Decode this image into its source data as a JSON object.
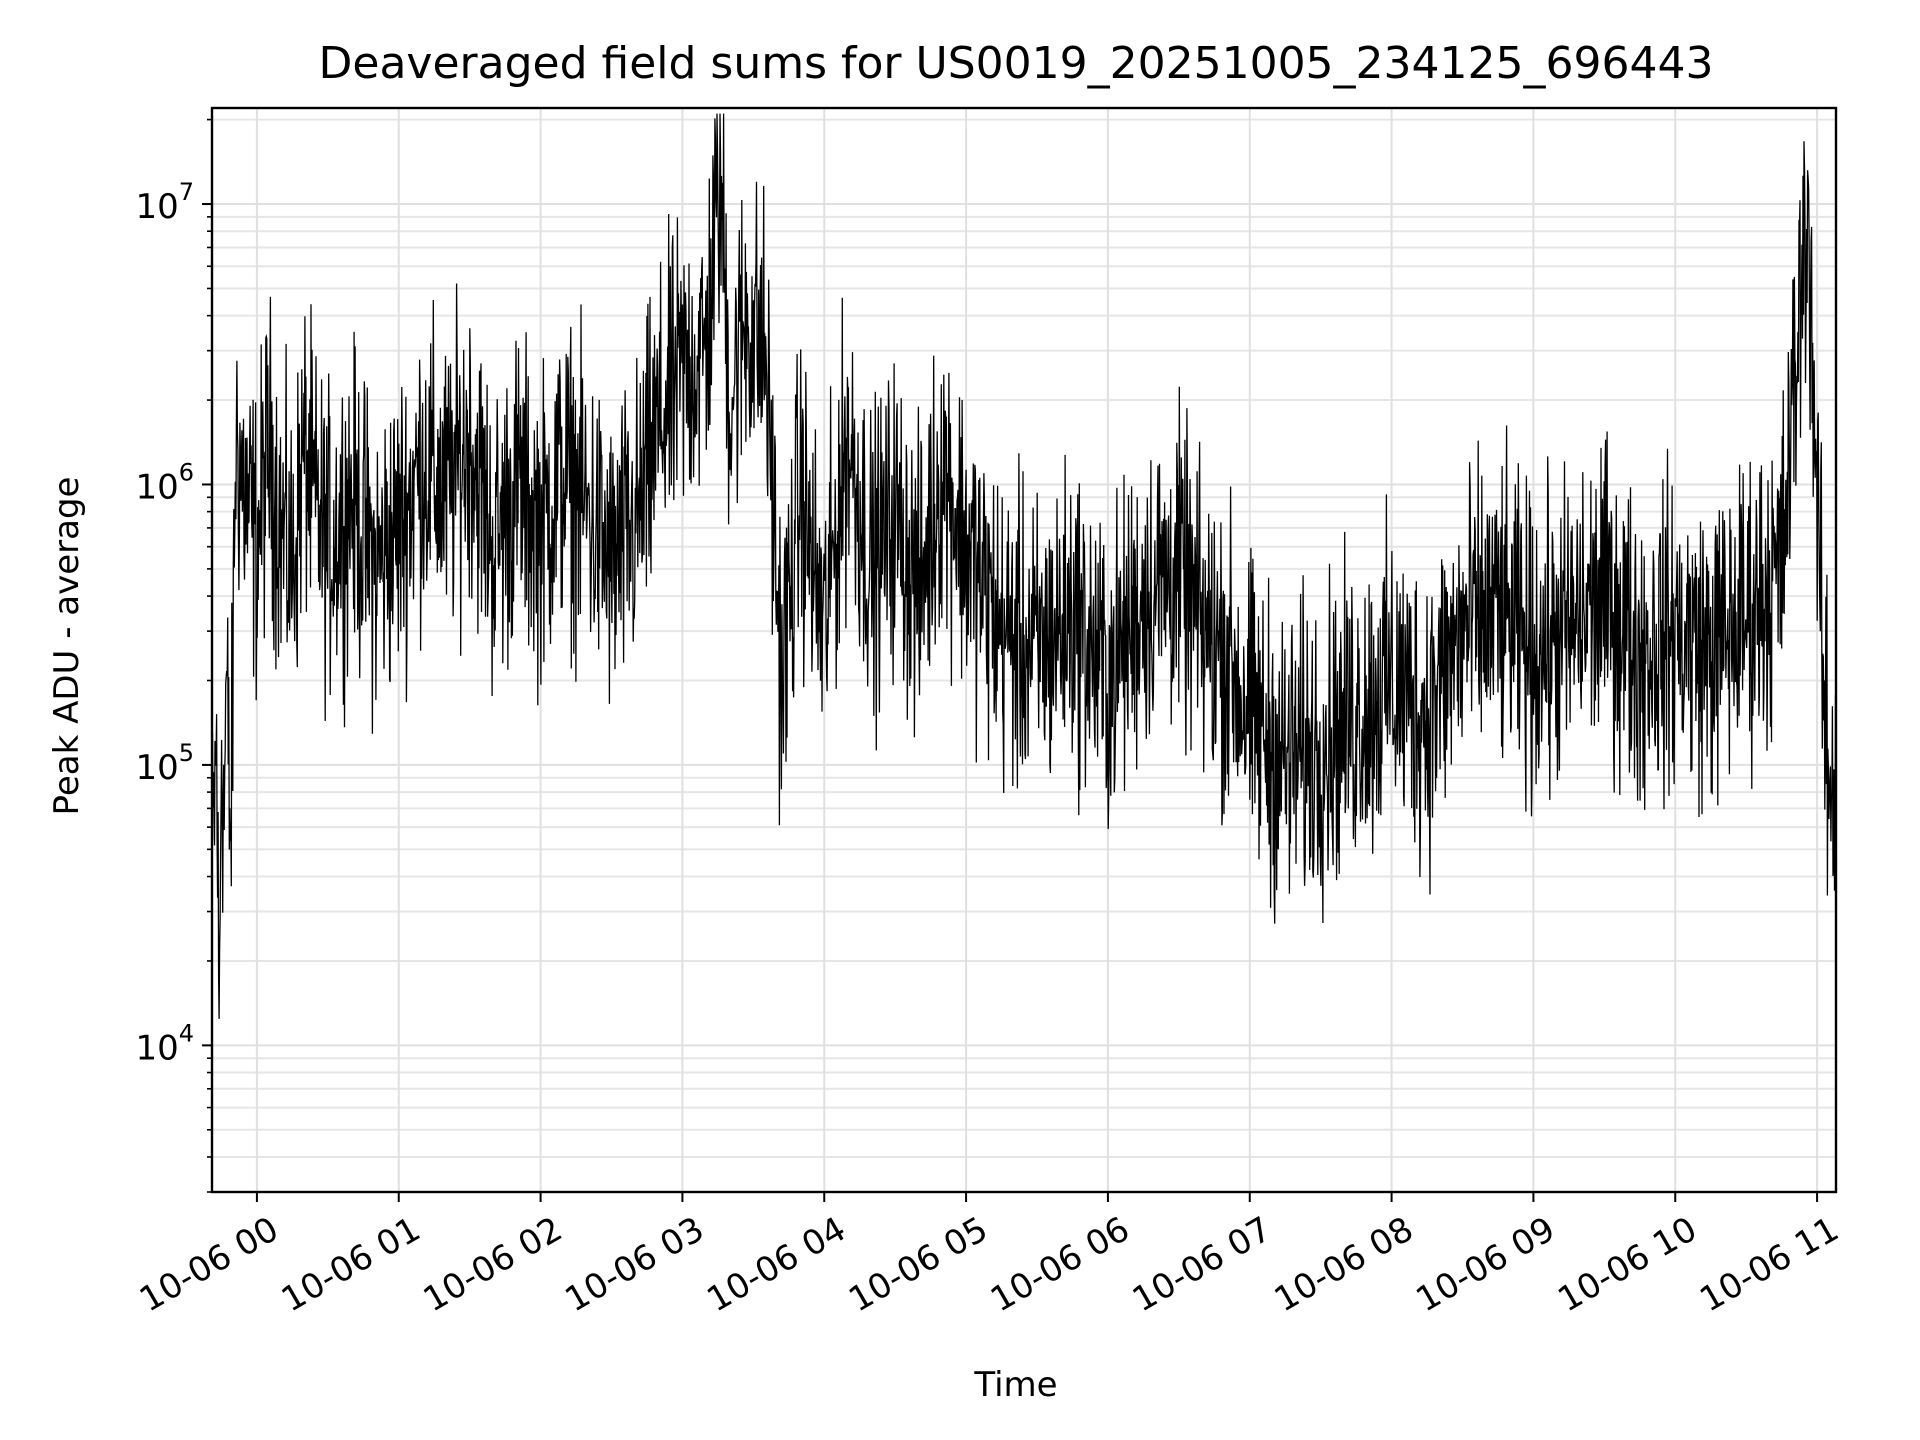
{
  "chart_data": {
    "type": "line",
    "title": "Deaveraged field sums for US0019_20251005_234125_696443",
    "xlabel": "Time",
    "ylabel": "Peak ADU - average",
    "yscale": "log",
    "grid": "major and minor, light gray",
    "legend": "none",
    "line_color": "#000000",
    "xlim": [
      "10-05 23:41",
      "10-06 11:08"
    ],
    "ylim": [
      3000,
      22000000
    ],
    "x_ticks": [
      "10-06 00",
      "10-06 01",
      "10-06 02",
      "10-06 03",
      "10-06 04",
      "10-06 05",
      "10-06 06",
      "10-06 07",
      "10-06 08",
      "10-06 09",
      "10-06 10",
      "10-06 11"
    ],
    "y_ticks": [
      {
        "base": "10",
        "exp": "4",
        "value": 10000
      },
      {
        "base": "10",
        "exp": "5",
        "value": 100000
      },
      {
        "base": "10",
        "exp": "6",
        "value": 1000000
      },
      {
        "base": "10",
        "exp": "7",
        "value": 10000000
      }
    ],
    "series": [
      {
        "x": [
          "10-05 23:41",
          "10-05 23:43",
          "10-05 23:44",
          "10-05 23:45",
          "10-05 23:46",
          "10-05 23:47",
          "10-05 23:49",
          "10-05 23:51",
          "10-05 23:55",
          "10-06 00:00",
          "10-06 00:05",
          "10-06 00:10",
          "10-06 00:15",
          "10-06 00:20",
          "10-06 00:25",
          "10-06 00:30",
          "10-06 00:40",
          "10-06 00:50",
          "10-06 01:00",
          "10-06 01:10",
          "10-06 01:20",
          "10-06 01:30",
          "10-06 01:40",
          "10-06 01:50",
          "10-06 02:00",
          "10-06 02:10",
          "10-06 02:20",
          "10-06 02:30",
          "10-06 02:40",
          "10-06 02:50",
          "10-06 03:00",
          "10-06 03:10",
          "10-06 03:16",
          "10-06 03:20",
          "10-06 03:27",
          "10-06 03:35",
          "10-06 03:42",
          "10-06 03:50",
          "10-06 03:55",
          "10-06 04:00",
          "10-06 04:10",
          "10-06 04:20",
          "10-06 04:30",
          "10-06 04:40",
          "10-06 04:50",
          "10-06 05:00",
          "10-06 05:15",
          "10-06 05:30",
          "10-06 05:45",
          "10-06 06:00",
          "10-06 06:15",
          "10-06 06:30",
          "10-06 06:40",
          "10-06 06:50",
          "10-06 07:00",
          "10-06 07:15",
          "10-06 07:30",
          "10-06 07:45",
          "10-06 08:00",
          "10-06 08:15",
          "10-06 08:30",
          "10-06 08:45",
          "10-06 09:00",
          "10-06 09:15",
          "10-06 09:30",
          "10-06 09:45",
          "10-06 10:00",
          "10-06 10:15",
          "10-06 10:30",
          "10-06 10:45",
          "10-06 10:56",
          "10-06 11:00",
          "10-06 11:03",
          "10-06 11:05",
          "10-06 11:08"
        ],
        "y": [
          40000,
          120000,
          10000,
          150000,
          60000,
          200000,
          50000,
          1500000,
          900000,
          600000,
          1400000,
          700000,
          500000,
          1300000,
          800000,
          600000,
          900000,
          500000,
          700000,
          1200000,
          900000,
          1500000,
          600000,
          1000000,
          700000,
          1100000,
          800000,
          500000,
          700000,
          1600000,
          2500000,
          3000000,
          13000000,
          2000000,
          4000000,
          3000000,
          200000,
          1000000,
          500000,
          300000,
          1500000,
          500000,
          800000,
          400000,
          1200000,
          600000,
          300000,
          250000,
          350000,
          200000,
          400000,
          500000,
          300000,
          250000,
          150000,
          100000,
          120000,
          150000,
          200000,
          150000,
          300000,
          350000,
          250000,
          300000,
          400000,
          250000,
          300000,
          250000,
          350000,
          500000,
          10500000,
          900000,
          150000,
          90000,
          80000
        ]
      }
    ]
  }
}
